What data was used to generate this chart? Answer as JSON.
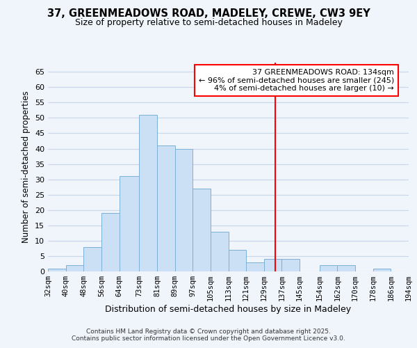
{
  "title1": "37, GREENMEADOWS ROAD, MADELEY, CREWE, CW3 9EY",
  "title2": "Size of property relative to semi-detached houses in Madeley",
  "xlabel": "Distribution of semi-detached houses by size in Madeley",
  "ylabel": "Number of semi-detached properties",
  "bin_edges": [
    32,
    40,
    48,
    56,
    64,
    73,
    81,
    89,
    97,
    105,
    113,
    121,
    129,
    137,
    145,
    154,
    162,
    170,
    178,
    186,
    194
  ],
  "bin_labels": [
    "32sqm",
    "40sqm",
    "48sqm",
    "56sqm",
    "64sqm",
    "73sqm",
    "81sqm",
    "89sqm",
    "97sqm",
    "105sqm",
    "113sqm",
    "121sqm",
    "129sqm",
    "137sqm",
    "145sqm",
    "154sqm",
    "162sqm",
    "170sqm",
    "178sqm",
    "186sqm",
    "194sqm"
  ],
  "counts": [
    1,
    2,
    8,
    19,
    31,
    51,
    41,
    40,
    27,
    13,
    7,
    3,
    4,
    4,
    0,
    2,
    2,
    0,
    1,
    0
  ],
  "bar_color": "#cce0f5",
  "bar_edge_color": "#7ab0d8",
  "grid_color": "#c8d8ea",
  "vline_x": 134,
  "vline_color": "red",
  "annotation_title": "37 GREENMEADOWS ROAD: 134sqm",
  "annotation_line1": "← 96% of semi-detached houses are smaller (245)",
  "annotation_line2": "4% of semi-detached houses are larger (10) →",
  "ylim": [
    0,
    68
  ],
  "yticks": [
    0,
    5,
    10,
    15,
    20,
    25,
    30,
    35,
    40,
    45,
    50,
    55,
    60,
    65
  ],
  "background_color": "#f0f4fb",
  "footer1": "Contains HM Land Registry data © Crown copyright and database right 2025.",
  "footer2": "Contains public sector information licensed under the Open Government Licence v3.0."
}
